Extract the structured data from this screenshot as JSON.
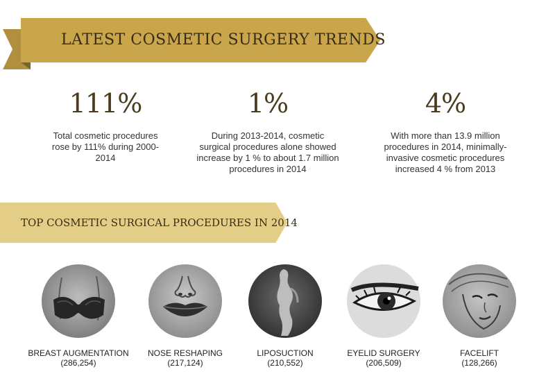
{
  "header": {
    "title": "LATEST COSMETIC SURGERY TRENDS"
  },
  "stats": [
    {
      "value": "111%",
      "text": "Total cosmetic procedures rose by 111%  during 2000-2014"
    },
    {
      "value": "1%",
      "text": "During 2013-2014, cosmetic surgical procedures alone showed increase by 1 % to about 1.7 million procedures in 2014"
    },
    {
      "value": "4%",
      "text": "With more than 13.9 million procedures in 2014, minimally-invasive cosmetic procedures increased 4 % from 2013"
    }
  ],
  "section": {
    "title": "TOP COSMETIC SURGICAL PROCEDURES IN 2014"
  },
  "procedures": [
    {
      "label": "BREAST AUGMENTATION",
      "count": "(286,254)",
      "icon": "breast-icon"
    },
    {
      "label": "NOSE RESHAPING",
      "count": "(217,124)",
      "icon": "nose-lips-icon"
    },
    {
      "label": "LIPOSUCTION",
      "count": "(210,552)",
      "icon": "body-silhouette-icon"
    },
    {
      "label": "EYELID SURGERY",
      "count": "(206,509)",
      "icon": "eye-icon"
    },
    {
      "label": "FACELIFT",
      "count": "(128,266)",
      "icon": "face-icon"
    }
  ],
  "colors": {
    "banner": "#c9a54c",
    "banner_dark": "#a88a3c",
    "ribbon": "#e3cd87",
    "title_text": "#3a2c14"
  }
}
